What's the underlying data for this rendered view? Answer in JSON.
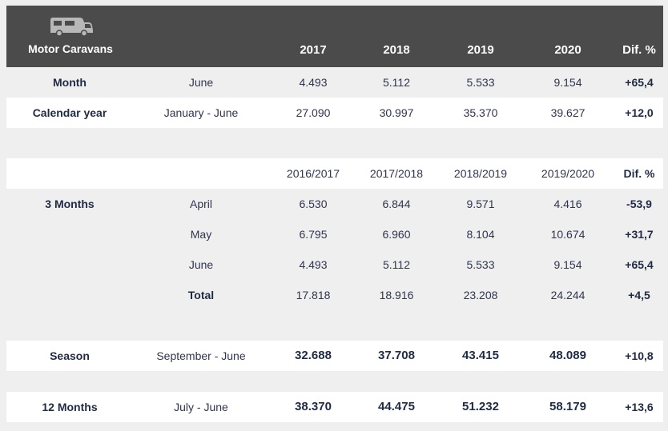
{
  "header": {
    "brand_label": "Motor Caravans",
    "icon": "camper-van-icon",
    "years": [
      "2017",
      "2018",
      "2019",
      "2020"
    ],
    "dif_label": "Dif. %"
  },
  "block1": [
    {
      "label": "Month",
      "period": "June",
      "values": [
        "4.493",
        "5.112",
        "5.533",
        "9.154"
      ],
      "dif": "+65,4"
    },
    {
      "label": "Calendar year",
      "period": "January - June",
      "values": [
        "27.090",
        "30.997",
        "35.370",
        "39.627"
      ],
      "dif": "+12,0"
    }
  ],
  "block2": {
    "headers": [
      "2016/2017",
      "2017/2018",
      "2018/2019",
      "2019/2020"
    ],
    "dif_label": "Dif. %",
    "group_label": "3 Months",
    "rows": [
      {
        "period": "April",
        "values": [
          "6.530",
          "6.844",
          "9.571",
          "4.416"
        ],
        "dif": "-53,9"
      },
      {
        "period": "May",
        "values": [
          "6.795",
          "6.960",
          "8.104",
          "10.674"
        ],
        "dif": "+31,7"
      },
      {
        "period": "June",
        "values": [
          "4.493",
          "5.112",
          "5.533",
          "9.154"
        ],
        "dif": "+65,4"
      }
    ],
    "total": {
      "label": "Total",
      "values": [
        "17.818",
        "18.916",
        "23.208",
        "24.244"
      ],
      "dif": "+4,5"
    }
  },
  "season": {
    "label": "Season",
    "period": "September - June",
    "values": [
      "32.688",
      "37.708",
      "43.415",
      "48.089"
    ],
    "dif": "+10,8"
  },
  "twelve": {
    "label": "12 Months",
    "period": "July - June",
    "values": [
      "38.370",
      "44.475",
      "51.232",
      "58.179"
    ],
    "dif": "+13,6"
  }
}
